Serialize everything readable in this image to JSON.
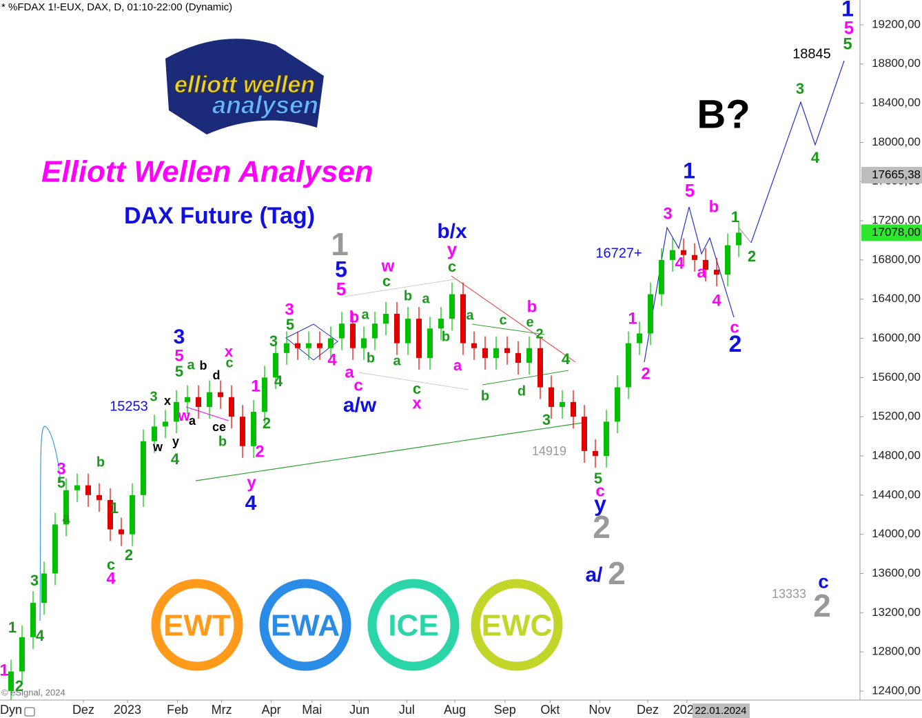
{
  "chart_data": {
    "type": "candlestick",
    "header": "* %FDAX 1!-EUX, DAX, D, 01:10-22:00 (Dynamic)",
    "title": "Elliott Wellen Analysen",
    "subtitle": "DAX Future (Tag)",
    "logo_text": [
      "elliott wellen",
      "analysen"
    ],
    "badges": [
      {
        "text": "EWT",
        "color": "#ff9a1a"
      },
      {
        "text": "EWA",
        "color": "#2a8ce6"
      },
      {
        "text": "ICE",
        "color": "#2ad6a8"
      },
      {
        "text": "EWC",
        "color": "#c2d62a"
      }
    ],
    "copyright": "© eSignal, 2024",
    "dyn": "Dyn",
    "date_marker": "22.01.2024",
    "up_color": "#00c000",
    "down_color": "#e00000",
    "x": [
      1,
      2,
      3,
      4,
      5,
      6,
      7,
      8,
      9,
      10,
      11,
      12,
      13,
      14,
      15,
      16,
      17,
      18,
      19,
      20,
      21,
      22,
      23,
      24,
      25,
      26,
      27,
      28,
      29,
      30,
      31,
      32,
      33,
      34,
      35,
      36,
      37,
      38,
      39,
      40,
      41,
      42,
      43,
      44,
      45,
      46,
      47,
      48,
      49,
      50,
      51,
      52,
      53,
      54,
      55,
      56,
      57,
      58,
      59,
      60,
      61,
      62,
      63,
      64,
      65,
      66,
      67
    ],
    "open": [
      12400,
      12600,
      12950,
      13300,
      13600,
      14100,
      14450,
      14500,
      14400,
      14350,
      14050,
      14000,
      14400,
      14950,
      15100,
      15150,
      15350,
      15400,
      15300,
      15450,
      15400,
      15200,
      14900,
      15250,
      15600,
      15850,
      15950,
      15900,
      15950,
      15900,
      16000,
      16150,
      15900,
      16000,
      16150,
      16250,
      15950,
      16200,
      15800,
      16100,
      16200,
      16450,
      15950,
      15900,
      15800,
      15900,
      15850,
      15750,
      15900,
      15500,
      15300,
      15350,
      15200,
      14850,
      14800,
      15150,
      15500,
      15950,
      16050,
      16450,
      16800,
      16900,
      16850,
      16800,
      16700,
      16650,
      16950
    ],
    "high": [
      12720,
      13070,
      13420,
      13720,
      14220,
      14570,
      14620,
      14620,
      14520,
      14470,
      14170,
      14520,
      15070,
      15220,
      15270,
      15470,
      15520,
      15520,
      15570,
      15570,
      15520,
      15320,
      15370,
      15720,
      15970,
      16070,
      16070,
      16070,
      16070,
      16120,
      16270,
      16270,
      16120,
      16270,
      16370,
      16370,
      16320,
      16320,
      16220,
      16320,
      16570,
      16570,
      16070,
      16020,
      16020,
      16020,
      15970,
      16020,
      16020,
      15620,
      15470,
      15470,
      15320,
      14970,
      15270,
      15620,
      16070,
      16170,
      16570,
      16920,
      17020,
      17020,
      16970,
      16920,
      16820,
      17070,
      17198
    ],
    "low": [
      12280,
      12480,
      12830,
      13180,
      13480,
      13980,
      14330,
      14280,
      14230,
      13930,
      13880,
      13880,
      14280,
      14830,
      14980,
      15030,
      15230,
      15180,
      15180,
      15280,
      15080,
      14780,
      14780,
      15130,
      15480,
      15730,
      15780,
      15780,
      15780,
      15780,
      15880,
      15780,
      15780,
      15880,
      16030,
      15830,
      15830,
      15680,
      15680,
      15980,
      16080,
      15830,
      15780,
      15680,
      15680,
      15730,
      15630,
      15630,
      15380,
      15180,
      15180,
      15080,
      14730,
      14680,
      14680,
      15030,
      15380,
      15830,
      15930,
      16330,
      16680,
      16730,
      16680,
      16580,
      16530,
      16530,
      16830
    ],
    "close": [
      12600,
      12950,
      13300,
      13600,
      14100,
      14450,
      14500,
      14400,
      14350,
      14050,
      14000,
      14400,
      14950,
      15100,
      15150,
      15350,
      15400,
      15300,
      15450,
      15400,
      15200,
      14900,
      15250,
      15600,
      15850,
      15950,
      15900,
      15950,
      15900,
      16000,
      16150,
      15900,
      16000,
      16150,
      16250,
      15950,
      16200,
      15800,
      16100,
      16200,
      16450,
      15950,
      15900,
      15800,
      15900,
      15850,
      15750,
      15900,
      15500,
      15300,
      15350,
      15200,
      14850,
      14800,
      15150,
      15500,
      15950,
      16050,
      16450,
      16800,
      16900,
      16850,
      16800,
      16700,
      16650,
      16950,
      17078
    ],
    "xlim": [
      0,
      78
    ],
    "xticks": [
      {
        "value": 7.56,
        "label": "Dez"
      },
      {
        "value": 11.56,
        "label": "2023"
      },
      {
        "value": 16.1,
        "label": "Feb"
      },
      {
        "value": 20.1,
        "label": "Mrz"
      },
      {
        "value": 24.6,
        "label": "Apr"
      },
      {
        "value": 28.3,
        "label": "Mai"
      },
      {
        "value": 32.6,
        "label": "Jun"
      },
      {
        "value": 36.9,
        "label": "Jul"
      },
      {
        "value": 41.25,
        "label": "Aug"
      },
      {
        "value": 45.8,
        "label": "Sep"
      },
      {
        "value": 49.9,
        "label": "Okt"
      },
      {
        "value": 54.4,
        "label": "Nov"
      },
      {
        "value": 58.75,
        "label": "Dez"
      },
      {
        "value": 62.3,
        "label": "2024"
      }
    ],
    "ylim": [
      12308,
      19453
    ],
    "yticks": [
      {
        "value": 12400,
        "label": "12400,00"
      },
      {
        "value": 12800,
        "label": "12800,00"
      },
      {
        "value": 13200,
        "label": "13200,00"
      },
      {
        "value": 13600,
        "label": "13600,00"
      },
      {
        "value": 14000,
        "label": "14000,00"
      },
      {
        "value": 14400,
        "label": "14400,00"
      },
      {
        "value": 14800,
        "label": "14800,00"
      },
      {
        "value": 15200,
        "label": "15200,00"
      },
      {
        "value": 15600,
        "label": "15600,00"
      },
      {
        "value": 16000,
        "label": "16000,00"
      },
      {
        "value": 16400,
        "label": "16400,00"
      },
      {
        "value": 16800,
        "label": "16800,00"
      },
      {
        "value": 17200,
        "label": "17200,00"
      },
      {
        "value": 17600,
        "label": "17600,00"
      },
      {
        "value": 18000,
        "label": "18000,00"
      },
      {
        "value": 18400,
        "label": "18400,00"
      },
      {
        "value": 18800,
        "label": "18800,00"
      },
      {
        "value": 19200,
        "label": "19200,00"
      }
    ],
    "price_markers": [
      {
        "value": 17665.38,
        "label": "17665,38",
        "color": "#bdbdbd",
        "text_color": "#000"
      },
      {
        "value": 17078,
        "label": "17078,00",
        "color": "#2ee62e",
        "text_color": "#000"
      }
    ],
    "annotations": [
      {
        "text": "1",
        "color": "#1010e0"
      },
      {
        "text": "5",
        "color": "#ff00ff"
      },
      {
        "text": "5",
        "color": "#1a9a1a"
      },
      {
        "text": "18845",
        "color": "#000"
      },
      {
        "text": "3",
        "color": "#1a9a1a"
      },
      {
        "text": "4",
        "color": "#1a9a1a"
      },
      {
        "text": "B?",
        "color": "#000"
      },
      {
        "text": "1",
        "color": "#1010e0"
      },
      {
        "text": "5",
        "color": "#ff00ff"
      },
      {
        "text": "3",
        "color": "#ff00ff"
      },
      {
        "text": "b",
        "color": "#ff00ff"
      },
      {
        "text": "1",
        "color": "#1a9a1a"
      },
      {
        "text": "2",
        "color": "#1a9a1a"
      },
      {
        "text": "4",
        "color": "#ff00ff"
      },
      {
        "text": "a",
        "color": "#ff00ff"
      },
      {
        "text": "4",
        "color": "#ff00ff"
      },
      {
        "text": "c",
        "color": "#ff00ff"
      },
      {
        "text": "2",
        "color": "#1010e0"
      },
      {
        "text": "16727+",
        "color": "#1010e0"
      },
      {
        "text": "1",
        "color": "#ff00ff"
      },
      {
        "text": "2",
        "color": "#ff00ff"
      },
      {
        "text": "5",
        "color": "#1a9a1a"
      },
      {
        "text": "c",
        "color": "#ff00ff"
      },
      {
        "text": "y",
        "color": "#1010e0"
      },
      {
        "text": "2",
        "color": "#999999"
      },
      {
        "text": "a/",
        "color": "#1010e0"
      },
      {
        "text": "2",
        "color": "#999999"
      },
      {
        "text": "14919",
        "color": "#999999"
      },
      {
        "text": "13333",
        "color": "#999999"
      },
      {
        "text": "c",
        "color": "#1010e0"
      },
      {
        "text": "2",
        "color": "#999999"
      },
      {
        "text": "b/x",
        "color": "#1010e0"
      },
      {
        "text": "y",
        "color": "#ff00ff"
      },
      {
        "text": "c",
        "color": "#1a9a1a"
      },
      {
        "text": "w",
        "color": "#ff00ff"
      },
      {
        "text": "c",
        "color": "#1a9a1a"
      },
      {
        "text": "1",
        "color": "#999999"
      },
      {
        "text": "5",
        "color": "#1010e0"
      },
      {
        "text": "5",
        "color": "#ff00ff"
      },
      {
        "text": "3",
        "color": "#ff00ff"
      },
      {
        "text": "5",
        "color": "#1a9a1a"
      },
      {
        "text": "3",
        "color": "#1a9a1a"
      },
      {
        "text": "4",
        "color": "#ff00ff"
      },
      {
        "text": "4",
        "color": "#1a9a1a"
      },
      {
        "text": "b",
        "color": "#ff00ff"
      },
      {
        "text": "a",
        "color": "#1a9a1a"
      },
      {
        "text": "a",
        "color": "#ff00ff"
      },
      {
        "text": "c",
        "color": "#ff00ff"
      },
      {
        "text": "b",
        "color": "#1a9a1a"
      },
      {
        "text": "a/w",
        "color": "#1010e0"
      },
      {
        "text": "b",
        "color": "#1a9a1a"
      },
      {
        "text": "a",
        "color": "#1a9a1a"
      },
      {
        "text": "a",
        "color": "#1a9a1a"
      },
      {
        "text": "c",
        "color": "#1a9a1a"
      },
      {
        "text": "x",
        "color": "#ff00ff"
      },
      {
        "text": "b",
        "color": "#1a9a1a"
      },
      {
        "text": "a",
        "color": "#1a9a1a"
      },
      {
        "text": "c",
        "color": "#1a9a1a"
      },
      {
        "text": "b",
        "color": "#ff00ff"
      },
      {
        "text": "e",
        "color": "#1a9a1a"
      },
      {
        "text": "2",
        "color": "#1a9a1a"
      },
      {
        "text": "a",
        "color": "#ff00ff"
      },
      {
        "text": "b",
        "color": "#1a9a1a"
      },
      {
        "text": "d",
        "color": "#1a9a1a"
      },
      {
        "text": "4",
        "color": "#1a9a1a"
      },
      {
        "text": "3",
        "color": "#1a9a1a"
      },
      {
        "text": "3",
        "color": "#1010e0"
      },
      {
        "text": "5",
        "color": "#ff00ff"
      },
      {
        "text": "5",
        "color": "#1a9a1a"
      },
      {
        "text": "a",
        "color": "#1a9a1a"
      },
      {
        "text": "b",
        "color": "#000"
      },
      {
        "text": "d",
        "color": "#000"
      },
      {
        "text": "x",
        "color": "#ff00ff"
      },
      {
        "text": "c",
        "color": "#1a9a1a"
      },
      {
        "text": "ce",
        "color": "#000"
      },
      {
        "text": "b",
        "color": "#1a9a1a"
      },
      {
        "text": "w",
        "color": "#ff00ff"
      },
      {
        "text": "a",
        "color": "#000"
      },
      {
        "text": "3",
        "color": "#1a9a1a"
      },
      {
        "text": "x",
        "color": "#000"
      },
      {
        "text": "w",
        "color": "#000"
      },
      {
        "text": "y",
        "color": "#000"
      },
      {
        "text": "4",
        "color": "#1a9a1a"
      },
      {
        "text": "15253",
        "color": "#1010e0"
      },
      {
        "text": "1",
        "color": "#ff00ff"
      },
      {
        "text": "2",
        "color": "#1a9a1a"
      },
      {
        "text": "2",
        "color": "#ff00ff"
      },
      {
        "text": "y",
        "color": "#ff00ff"
      },
      {
        "text": "4",
        "color": "#1010e0"
      },
      {
        "text": "b",
        "color": "#1a9a1a"
      },
      {
        "text": "3",
        "color": "#ff00ff"
      },
      {
        "text": "5",
        "color": "#1a9a1a"
      },
      {
        "text": "a",
        "color": "#1a9a1a"
      },
      {
        "text": "1",
        "color": "#1a9a1a"
      },
      {
        "text": "2",
        "color": "#1a9a1a"
      },
      {
        "text": "c",
        "color": "#1a9a1a"
      },
      {
        "text": "4",
        "color": "#ff00ff"
      },
      {
        "text": "3",
        "color": "#1a9a1a"
      },
      {
        "text": "4",
        "color": "#1a9a1a"
      },
      {
        "text": "1",
        "color": "#1a9a1a"
      },
      {
        "text": "1",
        "color": "#ff00ff"
      },
      {
        "text": "2",
        "color": "#1a9a1a"
      }
    ]
  }
}
